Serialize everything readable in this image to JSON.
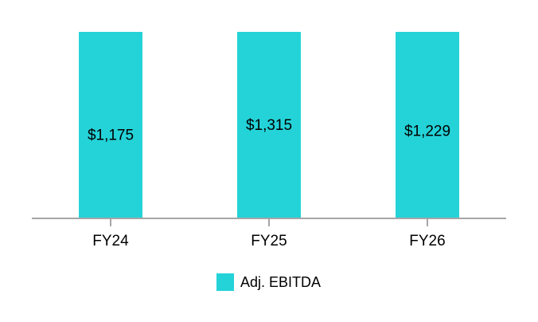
{
  "chart_data": {
    "type": "bar",
    "categories": [
      "FY24",
      "FY25",
      "FY26"
    ],
    "series": [
      {
        "name": "Adj. EBITDA",
        "values": [
          1175,
          1315,
          1229
        ],
        "labels": [
          "$1,175",
          "$1,315",
          "$1,229"
        ],
        "color": "#24D3D8"
      }
    ],
    "axis_color": "#A6A6A6",
    "grid": false,
    "legend_position": "bottom"
  }
}
